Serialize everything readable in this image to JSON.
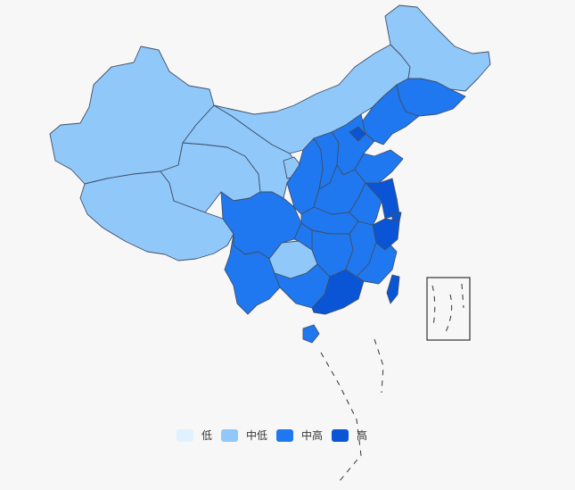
{
  "legend": {
    "items": [
      {
        "label": "低",
        "color": "#e0f1ff"
      },
      {
        "label": "中低",
        "color": "#91c8fa"
      },
      {
        "label": "中高",
        "color": "#1f78f0"
      },
      {
        "label": "高",
        "color": "#0a55d6"
      }
    ]
  },
  "regions": [
    {
      "name": "xinjiang",
      "level": "中低"
    },
    {
      "name": "tibet",
      "level": "中低"
    },
    {
      "name": "qinghai",
      "level": "中低"
    },
    {
      "name": "gansu",
      "level": "中低"
    },
    {
      "name": "inner-mongolia",
      "level": "中低"
    },
    {
      "name": "heilongjiang",
      "level": "中低"
    },
    {
      "name": "ningxia",
      "level": "中低"
    },
    {
      "name": "guizhou",
      "level": "中低"
    },
    {
      "name": "jilin",
      "level": "中高"
    },
    {
      "name": "liaoning",
      "level": "中高"
    },
    {
      "name": "sichuan",
      "level": "中高"
    },
    {
      "name": "yunnan",
      "level": "中高"
    },
    {
      "name": "shaanxi",
      "level": "中高"
    },
    {
      "name": "shanxi",
      "level": "中高"
    },
    {
      "name": "hebei",
      "level": "中高"
    },
    {
      "name": "shandong",
      "level": "中高"
    },
    {
      "name": "henan",
      "level": "中高"
    },
    {
      "name": "hubei",
      "level": "中高"
    },
    {
      "name": "hunan",
      "level": "中高"
    },
    {
      "name": "jiangxi",
      "level": "中高"
    },
    {
      "name": "anhui",
      "level": "中高"
    },
    {
      "name": "fujian",
      "level": "中高"
    },
    {
      "name": "guangxi",
      "level": "中高"
    },
    {
      "name": "chongqing",
      "level": "中高"
    },
    {
      "name": "hainan",
      "level": "中高"
    },
    {
      "name": "beijing",
      "level": "高"
    },
    {
      "name": "jiangsu",
      "level": "高"
    },
    {
      "name": "shanghai",
      "level": "高"
    },
    {
      "name": "zhejiang",
      "level": "高"
    },
    {
      "name": "guangdong",
      "level": "高"
    },
    {
      "name": "taiwan",
      "level": "高"
    }
  ]
}
